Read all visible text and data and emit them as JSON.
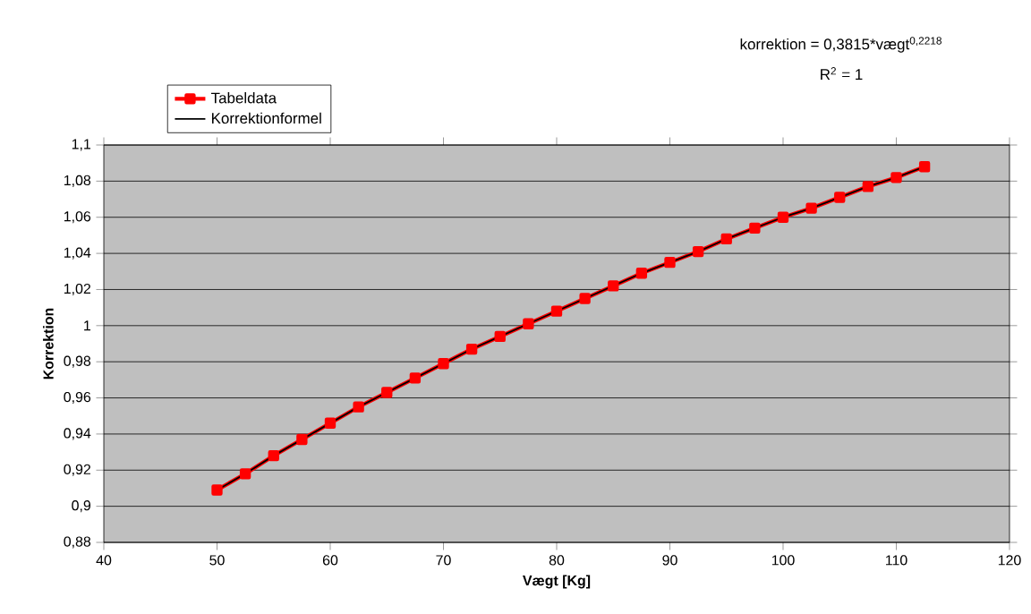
{
  "chart_data": {
    "type": "line",
    "xlabel": "Vægt [Kg]",
    "ylabel": "Korrektion",
    "annotations": [
      "korrektion = 0,3815*vægt$^{0,2218}$",
      "R$^{2}$ = 1"
    ],
    "x": [
      50,
      52.5,
      55,
      57.5,
      60,
      62.5,
      65,
      67.5,
      70,
      72.5,
      75,
      77.5,
      80,
      82.5,
      85,
      87.5,
      90,
      92.5,
      95,
      97.5,
      100,
      102.5,
      105,
      107.5,
      110,
      112.5
    ],
    "series": [
      {
        "name": "Tabeldata",
        "color": "#ff0000",
        "marker": "square",
        "values": [
          0.909,
          0.918,
          0.928,
          0.937,
          0.946,
          0.955,
          0.963,
          0.971,
          0.979,
          0.987,
          0.994,
          1.001,
          1.008,
          1.015,
          1.022,
          1.029,
          1.035,
          1.041,
          1.048,
          1.054,
          1.06,
          1.065,
          1.071,
          1.077,
          1.082,
          1.088
        ]
      },
      {
        "name": "Korrektionformel",
        "color": "#000000",
        "marker": "none",
        "values": [
          0.909,
          0.918,
          0.928,
          0.937,
          0.946,
          0.955,
          0.963,
          0.971,
          0.979,
          0.987,
          0.994,
          1.001,
          1.008,
          1.015,
          1.022,
          1.029,
          1.035,
          1.041,
          1.048,
          1.054,
          1.06,
          1.065,
          1.071,
          1.077,
          1.082,
          1.088
        ]
      }
    ],
    "xlim": [
      40,
      120
    ],
    "xticks": [
      40,
      50,
      60,
      70,
      80,
      90,
      100,
      110,
      120
    ],
    "ylim": [
      0.88,
      1.1
    ],
    "yticks": [
      {
        "value": 0.88,
        "label": "0,88"
      },
      {
        "value": 0.9,
        "label": "0,9"
      },
      {
        "value": 0.92,
        "label": "0,92"
      },
      {
        "value": 0.94,
        "label": "0,94"
      },
      {
        "value": 0.96,
        "label": "0,96"
      },
      {
        "value": 0.98,
        "label": "0,98"
      },
      {
        "value": 1,
        "label": "1"
      },
      {
        "value": 1.02,
        "label": "1,02"
      },
      {
        "value": 1.04,
        "label": "1,04"
      },
      {
        "value": 1.06,
        "label": "1,06"
      },
      {
        "value": 1.08,
        "label": "1,08"
      },
      {
        "value": 1.1,
        "label": "1,1"
      }
    ],
    "grid": "y",
    "legend": "top left",
    "line_style": "solid"
  }
}
